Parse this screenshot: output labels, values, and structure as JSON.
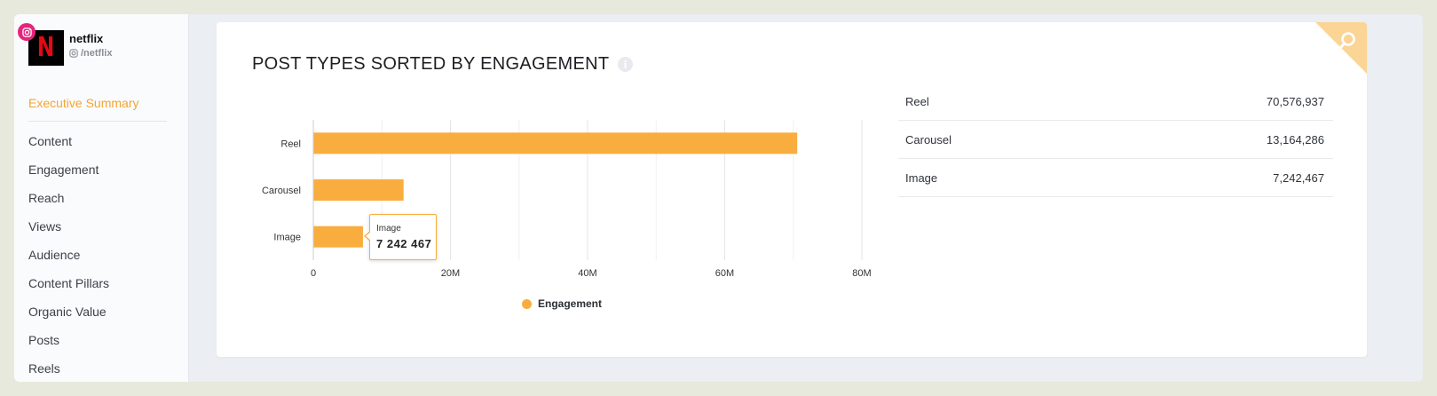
{
  "sidebar": {
    "account": {
      "name": "netflix",
      "handle": "/netflix",
      "logo_letter": "N"
    },
    "active_item": "Executive Summary",
    "items": [
      "Content",
      "Engagement",
      "Reach",
      "Views",
      "Audience",
      "Content Pillars",
      "Organic Value",
      "Posts",
      "Reels"
    ]
  },
  "card": {
    "title": "POST TYPES SORTED BY ENGAGEMENT",
    "info_icon": "info-icon",
    "corner_icon": "search-icon"
  },
  "chart_data": {
    "type": "bar",
    "orientation": "horizontal",
    "categories": [
      "Reel",
      "Carousel",
      "Image"
    ],
    "series": [
      {
        "name": "Engagement",
        "values": [
          70576937,
          13164286,
          7242467
        ],
        "color": "#f9ad3e"
      }
    ],
    "xlim": [
      0,
      80000000
    ],
    "x_ticks": [
      "0",
      "20M",
      "40M",
      "60M",
      "80M"
    ],
    "grid": "vertical",
    "legend_position": "bottom",
    "tooltip": {
      "label": "Image",
      "value": "7 242 467"
    }
  },
  "table": {
    "rows": [
      {
        "label": "Reel",
        "value": "70,576,937"
      },
      {
        "label": "Carousel",
        "value": "13,164,286"
      },
      {
        "label": "Image",
        "value": "7,242,467"
      }
    ]
  },
  "colors": {
    "accent": "#f3a535",
    "bar": "#f9ad3e",
    "instagram": "#e6247b",
    "netflix_red": "#e50914"
  }
}
